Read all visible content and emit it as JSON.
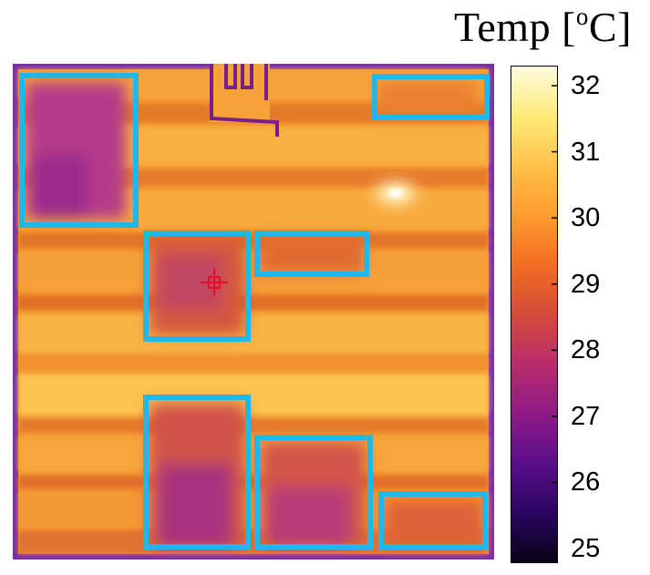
{
  "colorbar": {
    "title_prefix": "Temp [",
    "title_unit_sup": "o",
    "title_unit": "C]",
    "min": 25,
    "max": 32,
    "ticks": [
      "32",
      "31",
      "30",
      "29",
      "28",
      "27",
      "26",
      "25"
    ],
    "colormap": "inferno-like (black-purple-magenta-orange-yellow-white)",
    "gradient_colors": [
      "#fffbe0",
      "#ffec7a",
      "#ffc24a",
      "#ff9c2e",
      "#f26d22",
      "#d64a3a",
      "#b92c6a",
      "#8f1a87",
      "#5b0e8a",
      "#2a0560",
      "#080414"
    ]
  },
  "thermal_image": {
    "frame_color": "#7a2bb0",
    "highlight_box_color": "#1fb8e8",
    "highlight_box_count": 7,
    "hotspot_color": "#fff6c8",
    "marker": "crosshair",
    "marker_color": "#e0102a"
  }
}
